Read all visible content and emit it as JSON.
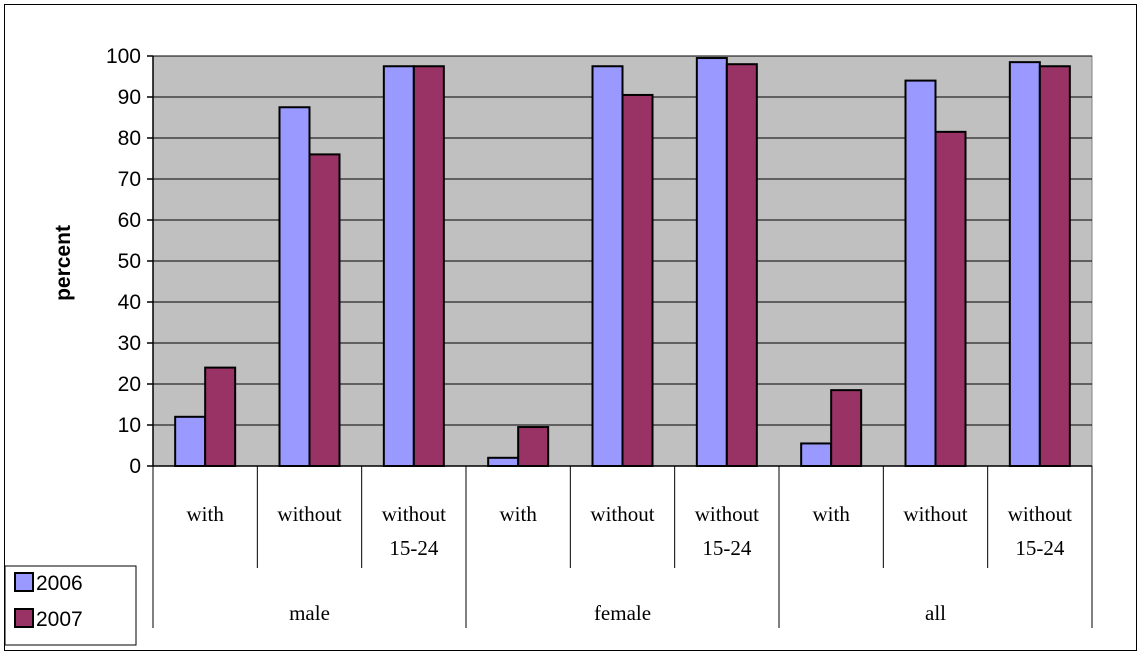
{
  "chart_data": {
    "type": "bar",
    "ylabel": "percent",
    "ylim": [
      0,
      100
    ],
    "yticks": [
      "0",
      "10",
      "20",
      "30",
      "40",
      "50",
      "60",
      "70",
      "80",
      "90",
      "100"
    ],
    "categories": [
      {
        "group": "male",
        "label": [
          "with"
        ]
      },
      {
        "group": "male",
        "label": [
          "without"
        ]
      },
      {
        "group": "male",
        "label": [
          "without",
          "15-24"
        ]
      },
      {
        "group": "female",
        "label": [
          "with"
        ]
      },
      {
        "group": "female",
        "label": [
          "without"
        ]
      },
      {
        "group": "female",
        "label": [
          "without",
          "15-24"
        ]
      },
      {
        "group": "all",
        "label": [
          "with"
        ]
      },
      {
        "group": "all",
        "label": [
          "without"
        ]
      },
      {
        "group": "all",
        "label": [
          "without",
          "15-24"
        ]
      }
    ],
    "groups": [
      "male",
      "female",
      "all"
    ],
    "series": [
      {
        "name": "2006",
        "color": "#9999ff",
        "values": [
          12,
          87.5,
          97.5,
          2,
          97.5,
          99.5,
          5.5,
          94,
          98.5
        ]
      },
      {
        "name": "2007",
        "color": "#993366",
        "values": [
          24,
          76,
          97.5,
          9.5,
          90.5,
          98,
          18.5,
          81.5,
          97.5
        ]
      }
    ],
    "plot_background": "#c0c0c0",
    "grid": true,
    "legend_position": "bottom-left"
  }
}
